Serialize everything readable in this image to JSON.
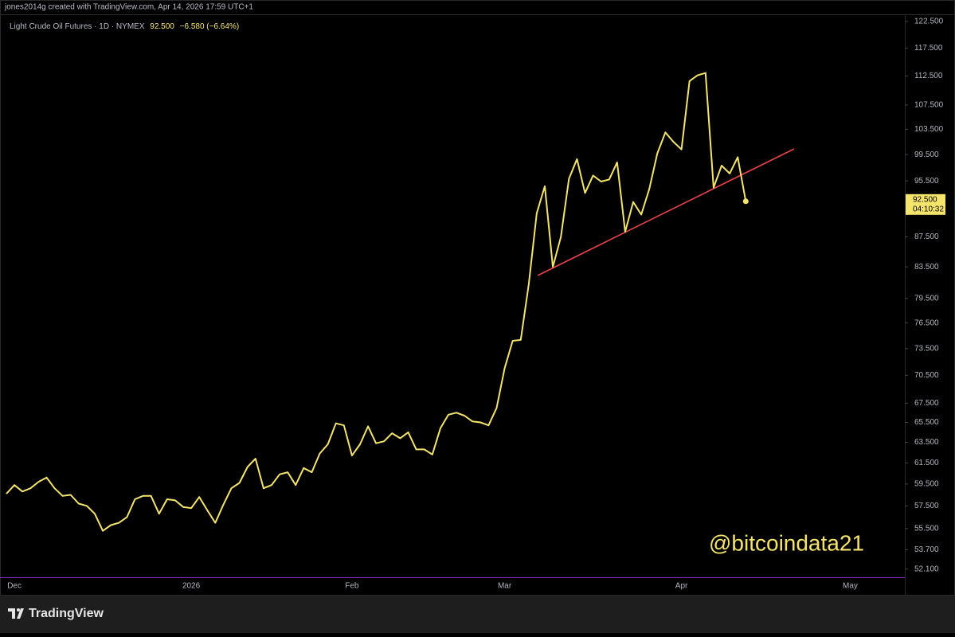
{
  "caption": "jones2014g created with TradingView.com, Apr 14, 2026 17:59 UTC+1",
  "branding": "TradingView",
  "chart_data": {
    "type": "line",
    "legend": {
      "symbol": "Light Crude Oil Futures · 1D · NYMEX",
      "price": "92.500",
      "change": "−6.580 (−6.64%)"
    },
    "watermark": "@bitcoindata21",
    "last_price_label": "92.500",
    "countdown": "04:10:32",
    "y_scale": "log",
    "grid": false,
    "color": "#f5e46c",
    "ylim": [
      51.5,
      124
    ],
    "yticks": [
      {
        "value": 122.5,
        "label": "122.500"
      },
      {
        "value": 117.5,
        "label": "117.500"
      },
      {
        "value": 112.5,
        "label": "112.500"
      },
      {
        "value": 107.5,
        "label": "107.500"
      },
      {
        "value": 103.5,
        "label": "103.500"
      },
      {
        "value": 99.5,
        "label": "99.500"
      },
      {
        "value": 95.5,
        "label": "95.500"
      },
      {
        "value": 87.5,
        "label": "87.500"
      },
      {
        "value": 83.5,
        "label": "83.500"
      },
      {
        "value": 79.5,
        "label": "79.500"
      },
      {
        "value": 76.5,
        "label": "76.500"
      },
      {
        "value": 73.5,
        "label": "73.500"
      },
      {
        "value": 70.5,
        "label": "70.500"
      },
      {
        "value": 67.5,
        "label": "67.500"
      },
      {
        "value": 65.5,
        "label": "65.500"
      },
      {
        "value": 63.5,
        "label": "63.500"
      },
      {
        "value": 61.5,
        "label": "61.500"
      },
      {
        "value": 59.5,
        "label": "59.500"
      },
      {
        "value": 57.5,
        "label": "57.500"
      },
      {
        "value": 55.5,
        "label": "55.500"
      },
      {
        "value": 53.7,
        "label": "53.700"
      },
      {
        "value": 52.1,
        "label": "52.100"
      }
    ],
    "categories": [
      null,
      "Dec",
      null,
      null,
      null,
      null,
      null,
      null,
      null,
      null,
      null,
      null,
      null,
      null,
      null,
      null,
      null,
      null,
      null,
      null,
      null,
      null,
      null,
      "2026",
      null,
      null,
      null,
      null,
      null,
      null,
      null,
      null,
      null,
      null,
      null,
      null,
      null,
      null,
      null,
      null,
      null,
      null,
      null,
      "Feb",
      null,
      null,
      null,
      null,
      null,
      null,
      null,
      null,
      null,
      null,
      null,
      null,
      null,
      null,
      null,
      null,
      null,
      null,
      "Mar",
      null,
      null,
      null,
      null,
      null,
      null,
      null,
      null,
      null,
      null,
      null,
      null,
      null,
      null,
      null,
      null,
      null,
      null,
      null,
      null,
      null,
      "Apr",
      null,
      null,
      null,
      null,
      null,
      null,
      null,
      null,
      null,
      null,
      null,
      null,
      null,
      null,
      null,
      null,
      null,
      null,
      null,
      null,
      "May",
      null,
      null,
      null,
      null,
      null,
      null
    ],
    "values": [
      58.6,
      59.4,
      58.8,
      59.1,
      59.7,
      60.1,
      59.1,
      58.4,
      58.5,
      57.7,
      57.5,
      56.8,
      55.3,
      55.8,
      56.0,
      56.5,
      58.1,
      58.4,
      58.4,
      56.8,
      58.1,
      58.0,
      57.4,
      57.3,
      58.3,
      57.1,
      56.0,
      57.6,
      59.1,
      59.6,
      61.1,
      61.9,
      59.1,
      59.4,
      60.4,
      60.6,
      59.4,
      61.0,
      60.6,
      62.4,
      63.3,
      65.4,
      65.2,
      62.2,
      63.3,
      65.1,
      63.4,
      63.6,
      64.4,
      63.9,
      64.5,
      62.8,
      62.8,
      62.3,
      64.9,
      66.3,
      66.5,
      66.2,
      65.6,
      65.5,
      65.2,
      67.0,
      71.3,
      74.4,
      74.5,
      81.3,
      90.8,
      94.7,
      83.5,
      87.5,
      95.8,
      98.8,
      93.7,
      96.3,
      95.4,
      95.7,
      98.3,
      88.2,
      92.4,
      90.6,
      94.3,
      99.7,
      103.0,
      101.5,
      100.3,
      111.6,
      112.6,
      113.0,
      94.5,
      97.8,
      96.6,
      99.1,
      92.5,
      null,
      null,
      null,
      null,
      null,
      null,
      null,
      null,
      null,
      null,
      null,
      null,
      null,
      null,
      null,
      null,
      null,
      null,
      null
    ]
  }
}
